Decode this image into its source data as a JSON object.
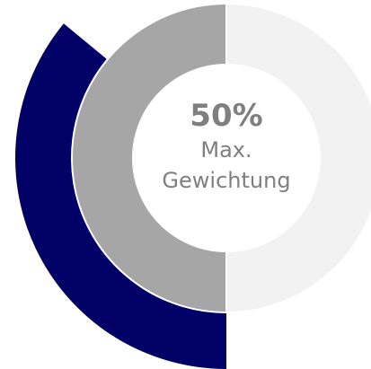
{
  "chart_data": {
    "type": "donut",
    "vlim": [
      0,
      100
    ],
    "rings": [
      {
        "values": [
          50
        ],
        "value_labels": [
          "50%"
        ],
        "color": "#a6a6a6",
        "track_color": "#f2f2f2"
      },
      {
        "values": [
          36
        ],
        "color": "#000066"
      }
    ],
    "label": "Max. Gewichtung"
  }
}
